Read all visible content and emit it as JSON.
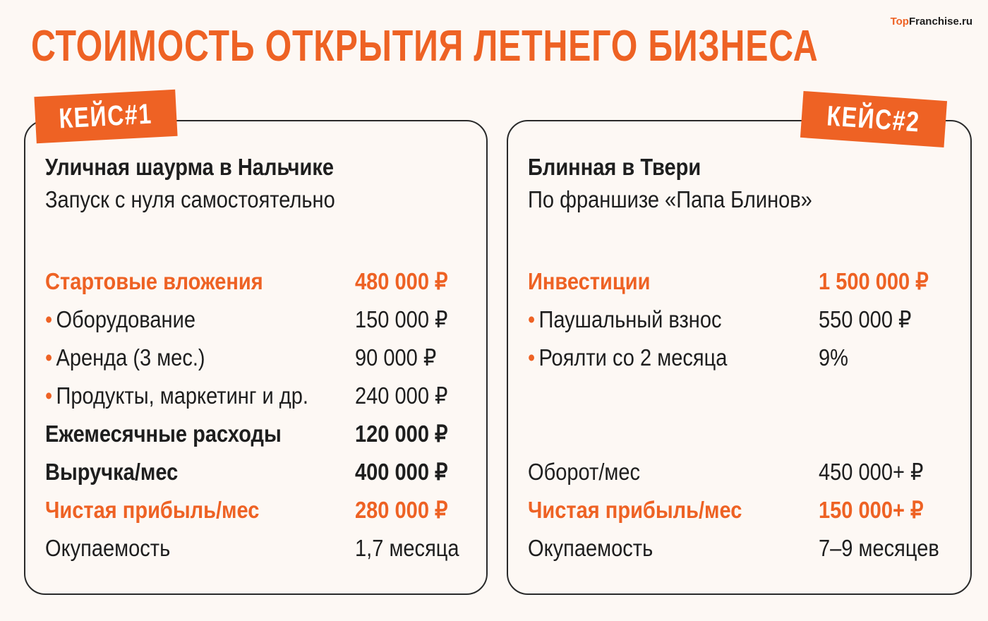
{
  "title": "СТОИМОСТЬ ОТКРЫТИЯ ЛЕТНЕГО БИЗНЕСА",
  "logo": {
    "part1": "Top",
    "part2": "Franchise.ru"
  },
  "colors": {
    "accent": "#ee6224",
    "background": "#fdf8f4",
    "text": "#1e1e1e"
  },
  "case1": {
    "tag": "КЕЙС#1",
    "name": "Уличная шаурма в Нальчике",
    "subtitle": "Запуск с нуля самостоятельно",
    "rows": [
      {
        "label": "Стартовые вложения",
        "value": "480 000 ₽",
        "style": "accent"
      },
      {
        "label": "Оборудование",
        "value": "150 000 ₽",
        "style": "bullet"
      },
      {
        "label": "Аренда (3 мес.)",
        "value": "90 000 ₽",
        "style": "bullet"
      },
      {
        "label": "Продукты, маркетинг и др.",
        "value": "240 000 ₽",
        "style": "bullet"
      },
      {
        "label": "Ежемесячные расходы",
        "value": "120 000 ₽",
        "style": "bold"
      },
      {
        "label": "Выручка/мес",
        "value": "400 000 ₽",
        "style": "bold"
      },
      {
        "label": "Чистая прибыль/мес",
        "value": "280 000 ₽",
        "style": "accent"
      },
      {
        "label": "Окупаемость",
        "value": "1,7 месяца",
        "style": "plain"
      }
    ]
  },
  "case2": {
    "tag": "КЕЙС#2",
    "name": "Блинная в Твери",
    "subtitle": "По франшизе «Папа Блинов»",
    "rows": [
      {
        "label": "Инвестиции",
        "value": "1 500 000 ₽",
        "style": "accent"
      },
      {
        "label": "Паушальный взнос",
        "value": "550 000 ₽",
        "style": "bullet"
      },
      {
        "label": "Роялти со 2 месяца",
        "value": "9%",
        "style": "bullet"
      },
      {
        "label": "Оборот/мес",
        "value": "450 000+ ₽",
        "style": "plain"
      },
      {
        "label": "Чистая прибыль/мес",
        "value": "150 000+ ₽",
        "style": "accent"
      },
      {
        "label": "Окупаемость",
        "value": "7–9 месяцев",
        "style": "plain"
      }
    ]
  }
}
